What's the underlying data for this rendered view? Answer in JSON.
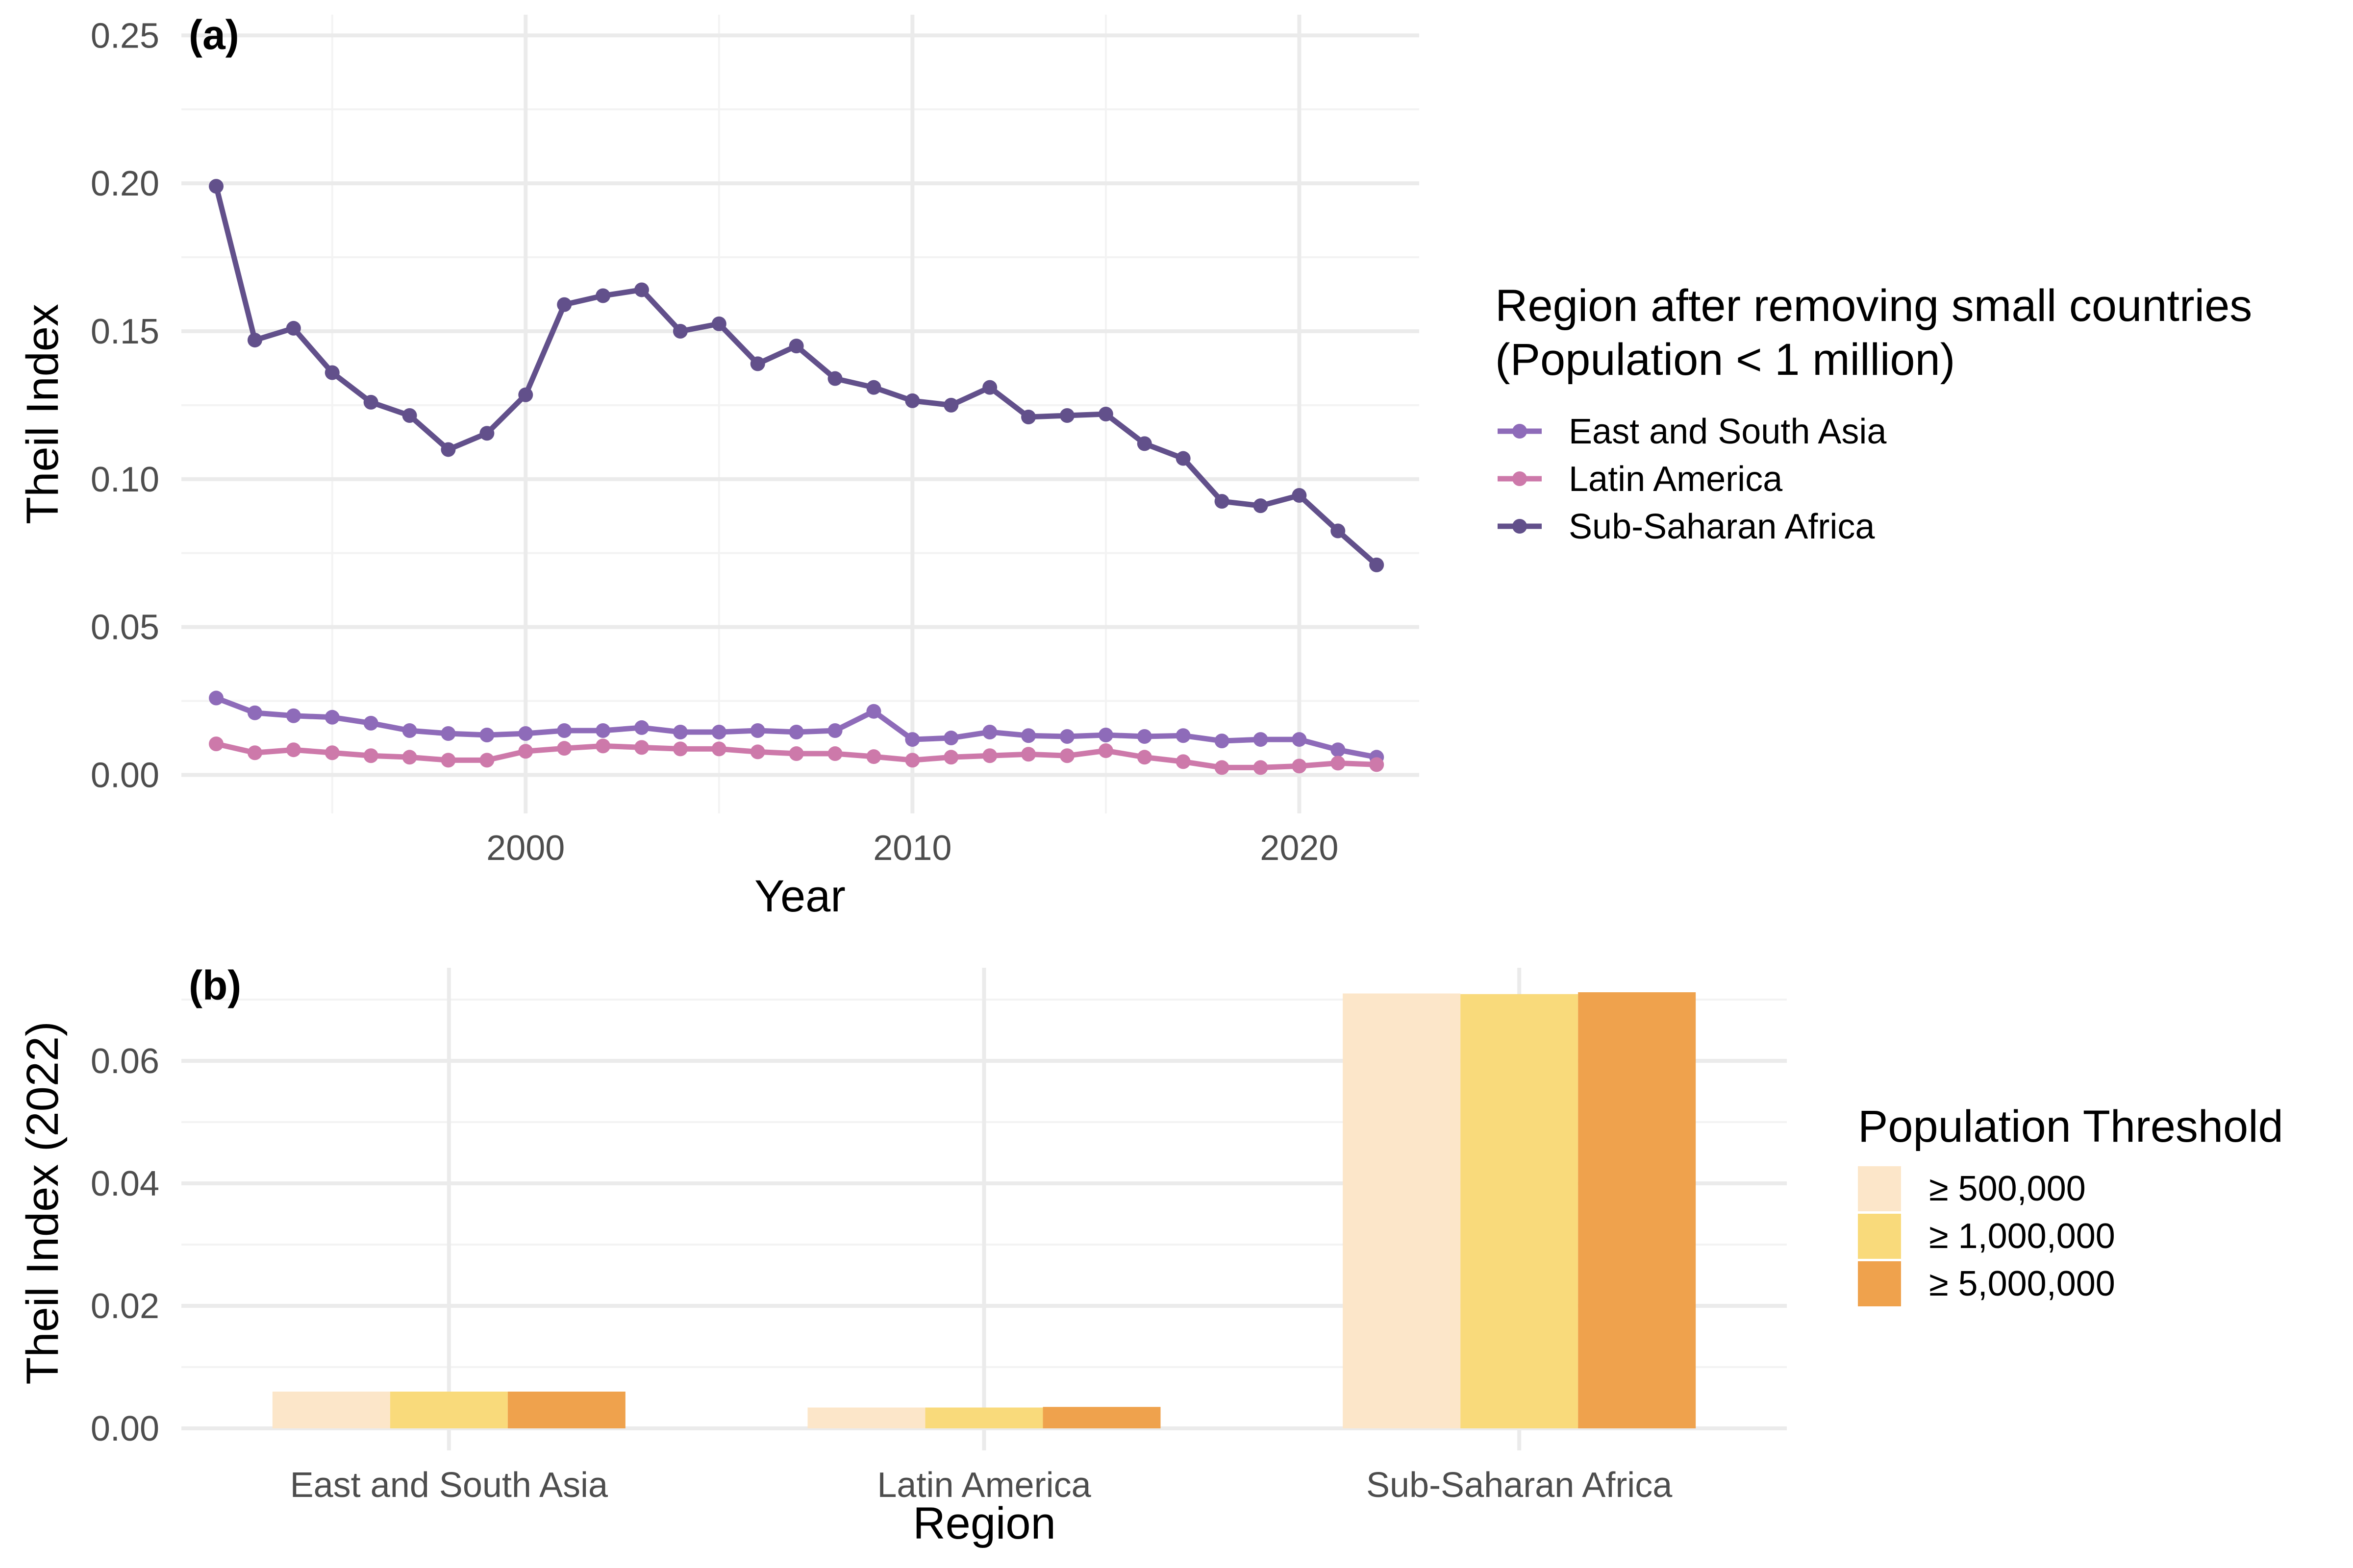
{
  "chart_data": [
    {
      "panel": "(a)",
      "type": "line",
      "xlabel": "Year",
      "ylabel": "Theil Index",
      "xlim": [
        1991.1,
        2023.1
      ],
      "ylim": [
        -0.013,
        0.257
      ],
      "x_ticks": [
        2000,
        2010,
        2020
      ],
      "y_ticks": [
        0.0,
        0.05,
        0.1,
        0.15,
        0.2,
        0.25
      ],
      "y_tick_labels": [
        "0.00",
        "0.05",
        "0.10",
        "0.15",
        "0.20",
        "0.25"
      ],
      "grid": true,
      "legend": {
        "title_line1": "Region after removing small countries",
        "title_line2": "(Population < 1 million)",
        "placement": "right"
      },
      "x": [
        1992,
        1993,
        1994,
        1995,
        1996,
        1997,
        1998,
        1999,
        2000,
        2001,
        2002,
        2003,
        2004,
        2005,
        2006,
        2007,
        2008,
        2009,
        2010,
        2011,
        2012,
        2013,
        2014,
        2015,
        2016,
        2017,
        2018,
        2019,
        2020,
        2021,
        2022
      ],
      "series": [
        {
          "name": "East and South Asia",
          "color": "#8e6bb9",
          "values": [
            0.026,
            0.021,
            0.02,
            0.0195,
            0.0175,
            0.015,
            0.014,
            0.0135,
            0.014,
            0.015,
            0.015,
            0.016,
            0.0145,
            0.0145,
            0.015,
            0.0145,
            0.015,
            0.0215,
            0.012,
            0.0125,
            0.0145,
            0.0133,
            0.013,
            0.0135,
            0.013,
            0.0133,
            0.0115,
            0.012,
            0.012,
            0.0085,
            0.006
          ]
        },
        {
          "name": "Latin America",
          "color": "#cd79aa",
          "values": [
            0.0105,
            0.0075,
            0.0085,
            0.0075,
            0.0065,
            0.006,
            0.005,
            0.005,
            0.008,
            0.009,
            0.0098,
            0.0093,
            0.0088,
            0.0088,
            0.0078,
            0.0072,
            0.0072,
            0.0062,
            0.005,
            0.006,
            0.0065,
            0.007,
            0.0065,
            0.0082,
            0.006,
            0.0045,
            0.0025,
            0.0025,
            0.003,
            0.004,
            0.0035
          ]
        },
        {
          "name": "Sub-Saharan Africa",
          "color": "#62508b",
          "values": [
            0.199,
            0.147,
            0.151,
            0.136,
            0.126,
            0.1215,
            0.11,
            0.1155,
            0.1285,
            0.159,
            0.162,
            0.164,
            0.15,
            0.1525,
            0.139,
            0.145,
            0.134,
            0.131,
            0.1265,
            0.125,
            0.131,
            0.121,
            0.1215,
            0.122,
            0.112,
            0.107,
            0.0925,
            0.091,
            0.0945,
            0.0825,
            0.071
          ]
        }
      ]
    },
    {
      "panel": "(b)",
      "type": "bar",
      "xlabel": "Region",
      "ylabel": "Theil Index (2022)",
      "ylim": [
        -0.0036,
        0.0752
      ],
      "y_ticks": [
        0.0,
        0.02,
        0.04,
        0.06
      ],
      "y_tick_labels": [
        "0.00",
        "0.02",
        "0.04",
        "0.06"
      ],
      "grid": true,
      "categories": [
        "East and South Asia",
        "Latin America",
        "Sub-Saharan Africa"
      ],
      "legend": {
        "title": "Population Threshold",
        "placement": "right"
      },
      "series": [
        {
          "name": "≥ 500,000",
          "color": "#fce6c9",
          "values": [
            0.006,
            0.0034,
            0.071
          ]
        },
        {
          "name": "≥ 1,000,000",
          "color": "#f9da7b",
          "values": [
            0.006,
            0.0034,
            0.0709
          ]
        },
        {
          "name": "≥ 5,000,000",
          "color": "#efa24d",
          "values": [
            0.006,
            0.0035,
            0.0712
          ]
        }
      ]
    }
  ]
}
